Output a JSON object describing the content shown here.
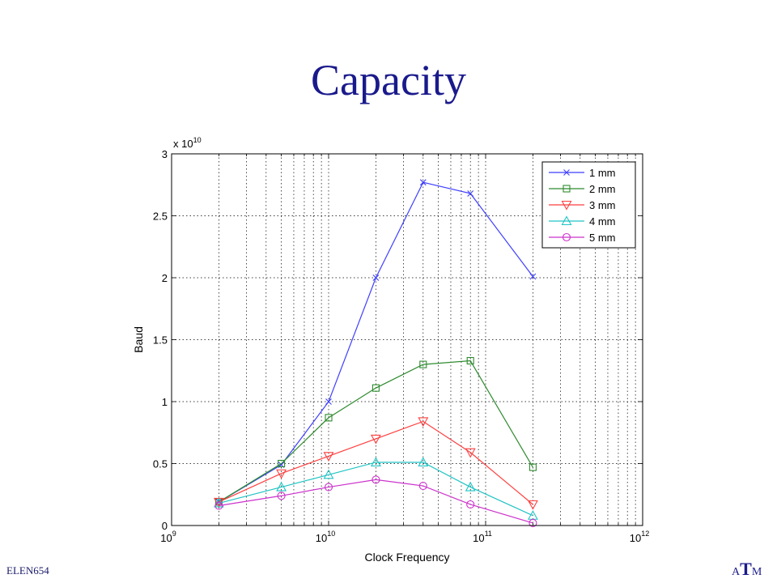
{
  "slide": {
    "title": "Capacity",
    "footer": "ELEN654",
    "logo": {
      "left": "A",
      "middle": "T",
      "right": "M"
    }
  },
  "chart_data": {
    "type": "line",
    "xlabel": "Clock Frequency",
    "ylabel": "Baud",
    "xscale": "log",
    "xlim": [
      1000000000,
      1000000000000
    ],
    "ylim": [
      0,
      3
    ],
    "y_multiplier": "x 10^10",
    "x_ticks": [
      {
        "base": "10",
        "exp": "9"
      },
      {
        "base": "10",
        "exp": "10"
      },
      {
        "base": "10",
        "exp": "11"
      },
      {
        "base": "10",
        "exp": "12"
      }
    ],
    "y_ticks": [
      "0",
      "0.5",
      "1",
      "1.5",
      "2",
      "2.5",
      "3"
    ],
    "grid": true,
    "legend_position": "top-right",
    "x": [
      2000000000,
      5000000000,
      10000000000,
      20000000000,
      40000000000,
      80000000000,
      200000000000
    ],
    "series": [
      {
        "name": "1 mm",
        "color": "#3f3fff",
        "marker": "x",
        "values": [
          0.19,
          0.49,
          1.0,
          2.0,
          2.77,
          2.68,
          2.01
        ]
      },
      {
        "name": "2 mm",
        "color": "#2e8b2e",
        "marker": "square",
        "values": [
          0.19,
          0.5,
          0.87,
          1.11,
          1.3,
          1.33,
          0.47
        ]
      },
      {
        "name": "3 mm",
        "color": "#ff3f3f",
        "marker": "triangle-down",
        "values": [
          0.19,
          0.42,
          0.56,
          0.7,
          0.84,
          0.59,
          0.17
        ]
      },
      {
        "name": "4 mm",
        "color": "#22c4c4",
        "marker": "triangle-up",
        "values": [
          0.18,
          0.31,
          0.41,
          0.51,
          0.51,
          0.31,
          0.08
        ]
      },
      {
        "name": "5 mm",
        "color": "#cc33cc",
        "marker": "circle",
        "values": [
          0.16,
          0.24,
          0.31,
          0.37,
          0.32,
          0.17,
          0.02
        ]
      }
    ]
  }
}
